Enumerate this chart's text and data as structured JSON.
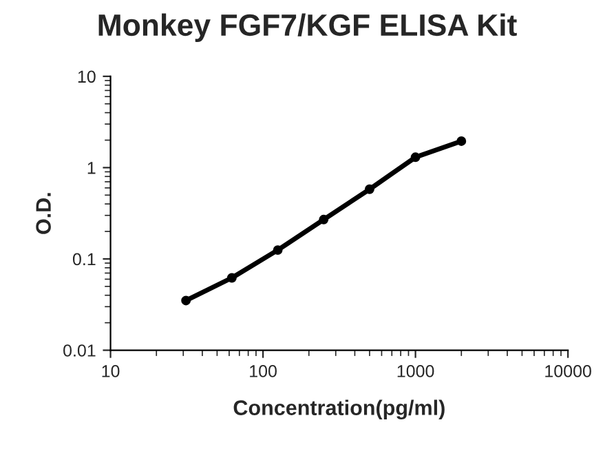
{
  "chart_data": {
    "type": "line",
    "title": "Monkey FGF7/KGF ELISA Kit",
    "xlabel": "Concentration(pg/ml)",
    "ylabel": "O.D.",
    "x": [
      31.25,
      62.5,
      125,
      250,
      500,
      1000,
      2000
    ],
    "series": [
      {
        "color": "#000000",
        "values": [
          0.035,
          0.062,
          0.125,
          0.27,
          0.58,
          1.3,
          1.95
        ]
      }
    ],
    "log": "xy",
    "xlim": [
      10,
      10000
    ],
    "xticks": [
      10,
      100,
      1000,
      10000
    ],
    "ylim": [
      0.01,
      10
    ],
    "yticks": [
      0.01,
      0.1,
      1,
      10
    ],
    "marker": "circle",
    "line_style": "solid",
    "grid": false,
    "legend": false
  }
}
